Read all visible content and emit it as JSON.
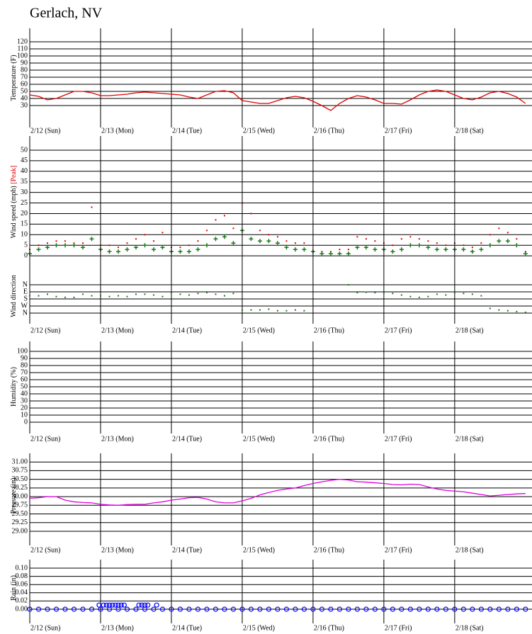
{
  "title": "Gerlach, NV",
  "chart_data": [
    {
      "type": "line",
      "ylabel": "Temperature (F)",
      "xlim": [
        0,
        170.2
      ],
      "ylim": [
        -1,
        139
      ],
      "yticks": [
        30,
        40,
        50,
        60,
        70,
        80,
        90,
        100,
        110,
        120
      ],
      "xticks": [
        {
          "value": 0,
          "label": "2/12 (Sun)"
        },
        {
          "value": 24,
          "label": "2/13 (Mon)"
        },
        {
          "value": 48,
          "label": "2/14 (Tue)"
        },
        {
          "value": 72,
          "label": "2/15 (Wed)"
        },
        {
          "value": 96,
          "label": "2/16 (Thu)"
        },
        {
          "value": 120,
          "label": "2/17 (Fri)"
        },
        {
          "value": 144,
          "label": "2/18 (Sat)"
        }
      ],
      "x": [
        0,
        3,
        6,
        9,
        12,
        15,
        18,
        21,
        24,
        27,
        30,
        33,
        36,
        39,
        42,
        45,
        48,
        51,
        54,
        57,
        60,
        63,
        66,
        69,
        72,
        75,
        78,
        81,
        84,
        87,
        90,
        93,
        96,
        99,
        102,
        105,
        108,
        111,
        114,
        117,
        120,
        123,
        126,
        129,
        132,
        135,
        138,
        141,
        144,
        147,
        150,
        153,
        156,
        159,
        162,
        165,
        168
      ],
      "series": [
        {
          "color": "#e00000",
          "values": [
            45,
            43,
            38,
            40,
            45,
            50,
            50,
            48,
            44,
            44,
            45,
            46,
            48,
            49,
            48,
            47,
            46,
            45,
            42,
            40,
            45,
            50,
            51,
            48,
            37,
            35,
            33,
            33,
            37,
            41,
            43,
            41,
            36,
            30,
            23,
            33,
            40,
            44,
            42,
            38,
            33,
            33,
            32,
            38,
            45,
            50,
            52,
            50,
            45,
            40,
            38,
            42,
            48,
            50,
            47,
            42,
            33
          ]
        }
      ]
    },
    {
      "type": "scatter",
      "ylabel": "Wind speed (mph)",
      "xlim": [
        0,
        170.2
      ],
      "ylim": [
        -1.3,
        56.7
      ],
      "yticks": [
        0,
        5,
        10,
        15,
        20,
        25,
        30,
        35,
        40,
        45,
        50
      ],
      "x": [
        0,
        3,
        6,
        9,
        12,
        15,
        18,
        21,
        24,
        27,
        30,
        33,
        36,
        39,
        42,
        45,
        48,
        51,
        54,
        57,
        60,
        63,
        66,
        69,
        72,
        75,
        78,
        81,
        84,
        87,
        90,
        93,
        96,
        99,
        102,
        105,
        108,
        111,
        114,
        117,
        120,
        123,
        126,
        129,
        132,
        135,
        138,
        141,
        144,
        147,
        150,
        153,
        156,
        159,
        162,
        165,
        168
      ],
      "series": [
        {
          "name": "[Peak]",
          "color": "#e00000",
          "marker": "dot",
          "values": [
            3,
            5,
            6,
            7,
            7,
            6,
            6,
            23,
            5,
            5,
            4,
            6,
            8,
            10,
            7,
            11,
            4,
            4,
            5,
            7,
            12,
            17,
            19,
            13,
            25,
            20,
            12,
            10,
            9,
            7,
            6,
            6,
            2,
            2,
            2,
            3,
            3,
            9,
            8,
            7,
            6,
            5,
            8,
            9,
            8,
            7,
            6,
            5,
            6,
            5,
            4,
            6,
            10,
            13,
            11,
            8,
            2
          ]
        },
        {
          "color": "#1a7a1a",
          "marker": "plus",
          "values": [
            1,
            3,
            4,
            5,
            5,
            5,
            4,
            8,
            3,
            2,
            2,
            3,
            4,
            5,
            3,
            4,
            2,
            2,
            2,
            3,
            5,
            8,
            9,
            6,
            12,
            8,
            7,
            7,
            6,
            4,
            3,
            3,
            2,
            1,
            1,
            1,
            1,
            4,
            4,
            3,
            3,
            2,
            3,
            5,
            5,
            4,
            3,
            3,
            3,
            3,
            2,
            3,
            5,
            7,
            7,
            5,
            1
          ]
        }
      ]
    },
    {
      "type": "scatter",
      "ylabel": "Wind direction",
      "xlim": [
        0,
        170.2
      ],
      "ylim": [
        495,
        -198
      ],
      "yticks": [
        {
          "value": 0,
          "label": "N"
        },
        {
          "value": 90,
          "label": "E"
        },
        {
          "value": 180,
          "label": "S"
        },
        {
          "value": 270,
          "label": "W"
        },
        {
          "value": 360,
          "label": "N"
        }
      ],
      "xticks": [
        {
          "value": 0,
          "label": "2/12 (Sun)"
        },
        {
          "value": 24,
          "label": "2/13 (Mon)"
        },
        {
          "value": 48,
          "label": "2/14 (Tue)"
        },
        {
          "value": 72,
          "label": "2/15 (Wed)"
        },
        {
          "value": 96,
          "label": "2/16 (Thu)"
        },
        {
          "value": 120,
          "label": "2/17 (Fri)"
        },
        {
          "value": 144,
          "label": "2/18 (Sat)"
        }
      ],
      "x": [
        0,
        3,
        6,
        9,
        12,
        15,
        18,
        21,
        24,
        27,
        30,
        33,
        36,
        39,
        42,
        45,
        48,
        51,
        54,
        57,
        60,
        63,
        66,
        69,
        72,
        75,
        78,
        81,
        84,
        87,
        90,
        93,
        96,
        99,
        102,
        105,
        108,
        111,
        114,
        117,
        120,
        123,
        126,
        129,
        132,
        135,
        138,
        141,
        144,
        147,
        150,
        153,
        156,
        159,
        162,
        165,
        168
      ],
      "series": [
        {
          "color": "#1a7a1a",
          "marker": "dot",
          "values": [
            140,
            140,
            120,
            150,
            160,
            160,
            120,
            140,
            140,
            150,
            140,
            150,
            120,
            120,
            130,
            150,
            100,
            120,
            130,
            110,
            100,
            120,
            140,
            110,
            320,
            320,
            320,
            310,
            330,
            330,
            320,
            330,
            null,
            null,
            null,
            null,
            0,
            100,
            95,
            100,
            100,
            110,
            130,
            150,
            160,
            150,
            120,
            130,
            100,
            110,
            120,
            140,
            300,
            320,
            330,
            340,
            350
          ]
        }
      ]
    },
    {
      "type": "line",
      "ylabel": "Humidity (%)",
      "xlim": [
        0,
        170.2
      ],
      "ylim": [
        -16,
        116
      ],
      "yticks": [
        0,
        10,
        20,
        30,
        40,
        50,
        60,
        70,
        80,
        90,
        100
      ],
      "xticks": [
        {
          "value": 0,
          "label": "2/12 (Sun)"
        },
        {
          "value": 24,
          "label": "2/13 (Mon)"
        },
        {
          "value": 48,
          "label": "2/14 (Tue)"
        },
        {
          "value": 72,
          "label": "2/15 (Wed)"
        },
        {
          "value": 96,
          "label": "2/16 (Thu)"
        },
        {
          "value": 120,
          "label": "2/17 (Fri)"
        },
        {
          "value": 144,
          "label": "2/18 (Sat)"
        }
      ],
      "series": []
    },
    {
      "type": "line",
      "ylabel": "Pressure (in)",
      "xlim": [
        0,
        170.2
      ],
      "ylim": [
        28.59,
        31.25
      ],
      "yticks": [
        {
          "value": 29,
          "label": "29.00"
        },
        {
          "value": 29.25,
          "label": "29.25"
        },
        {
          "value": 29.5,
          "label": "29.50"
        },
        {
          "value": 29.75,
          "label": "29.75"
        },
        {
          "value": 30,
          "label": "30.00"
        },
        {
          "value": 30.25,
          "label": "30.25"
        },
        {
          "value": 30.5,
          "label": "30.50"
        },
        {
          "value": 30.75,
          "label": "30.75"
        },
        {
          "value": 31,
          "label": "31.00"
        }
      ],
      "xticks": [
        {
          "value": 0,
          "label": "2/12 (Sun)"
        },
        {
          "value": 24,
          "label": "2/13 (Mon)"
        },
        {
          "value": 48,
          "label": "2/14 (Tue)"
        },
        {
          "value": 72,
          "label": "2/15 (Wed)"
        },
        {
          "value": 96,
          "label": "2/16 (Thu)"
        },
        {
          "value": 120,
          "label": "2/17 (Fri)"
        },
        {
          "value": 144,
          "label": "2/18 (Sat)"
        }
      ],
      "x": [
        0,
        3,
        6,
        9,
        12,
        15,
        18,
        21,
        24,
        27,
        30,
        33,
        36,
        39,
        42,
        45,
        48,
        51,
        54,
        57,
        60,
        63,
        66,
        69,
        72,
        75,
        78,
        81,
        84,
        87,
        90,
        93,
        96,
        99,
        102,
        105,
        108,
        111,
        114,
        117,
        120,
        123,
        126,
        129,
        132,
        135,
        138,
        141,
        144,
        147,
        150,
        153,
        156,
        159,
        162,
        165,
        168
      ],
      "series": [
        {
          "color": "#e000e0",
          "values": [
            29.95,
            29.97,
            30.0,
            30.0,
            29.9,
            29.85,
            29.83,
            29.82,
            29.78,
            29.76,
            29.75,
            29.77,
            29.78,
            29.78,
            29.82,
            29.85,
            29.9,
            29.93,
            29.97,
            29.98,
            29.93,
            29.85,
            29.82,
            29.82,
            29.88,
            29.95,
            30.05,
            30.12,
            30.18,
            30.22,
            30.25,
            30.32,
            30.38,
            30.43,
            30.47,
            30.5,
            30.48,
            30.43,
            30.42,
            30.4,
            30.38,
            30.35,
            30.34,
            30.36,
            30.35,
            30.28,
            30.22,
            30.18,
            30.16,
            30.14,
            30.1,
            30.06,
            30.02,
            30.04,
            30.06,
            30.08,
            30.09
          ]
        }
      ]
    },
    {
      "type": "scatter",
      "ylabel": "Rain (in)",
      "xlim": [
        0,
        170.2
      ],
      "ylim": [
        -0.0345,
        0.1207
      ],
      "yticks": [
        {
          "value": 0,
          "label": "0.00"
        },
        {
          "value": 0.02,
          "label": "0.02"
        },
        {
          "value": 0.04,
          "label": "0.04"
        },
        {
          "value": 0.06,
          "label": "0.06"
        },
        {
          "value": 0.08,
          "label": "0.08"
        },
        {
          "value": 0.1,
          "label": "0.10"
        }
      ],
      "xticks": [
        {
          "value": 0,
          "label": "2/12 (Sun)"
        },
        {
          "value": 24,
          "label": "2/13 (Mon)"
        },
        {
          "value": 48,
          "label": "2/14 (Tue)"
        },
        {
          "value": 72,
          "label": "2/15 (Wed)"
        },
        {
          "value": 96,
          "label": "2/16 (Thu)"
        },
        {
          "value": 120,
          "label": "2/17 (Fri)"
        },
        {
          "value": 144,
          "label": "2/18 (Sat)"
        }
      ],
      "series": [
        {
          "color": "#0000ff",
          "marker": "circle",
          "x": [
            0,
            3,
            6,
            9,
            12,
            15,
            18,
            21,
            24,
            27,
            30,
            33,
            36,
            39,
            42,
            45,
            48,
            51,
            54,
            57,
            60,
            63,
            66,
            69,
            72,
            75,
            78,
            81,
            84,
            87,
            90,
            93,
            96,
            99,
            102,
            105,
            108,
            111,
            114,
            117,
            120,
            123,
            126,
            129,
            132,
            135,
            138,
            141,
            144,
            147,
            150,
            153,
            156,
            159,
            162,
            165,
            168
          ],
          "values": [
            0,
            0,
            0,
            0,
            0,
            0,
            0,
            0,
            0,
            0,
            0,
            0,
            0,
            0,
            0,
            0,
            0,
            0,
            0,
            0,
            0,
            0,
            0,
            0,
            0,
            0,
            0,
            0,
            0,
            0,
            0,
            0,
            0,
            0,
            0,
            0,
            0,
            0,
            0,
            0,
            0,
            0,
            0,
            0,
            0,
            0,
            0,
            0,
            0,
            0,
            0,
            0,
            0,
            0,
            0,
            0,
            0
          ]
        },
        {
          "color": "#0000ff",
          "marker": "circle",
          "x": [
            23.5,
            25,
            26,
            27,
            28,
            29,
            30,
            31,
            32,
            37,
            38,
            39,
            40,
            43
          ],
          "values": [
            0.01,
            0.01,
            0.01,
            0.01,
            0.01,
            0.01,
            0.01,
            0.01,
            0.01,
            0.01,
            0.01,
            0.01,
            0.01,
            0.01
          ]
        }
      ]
    }
  ]
}
